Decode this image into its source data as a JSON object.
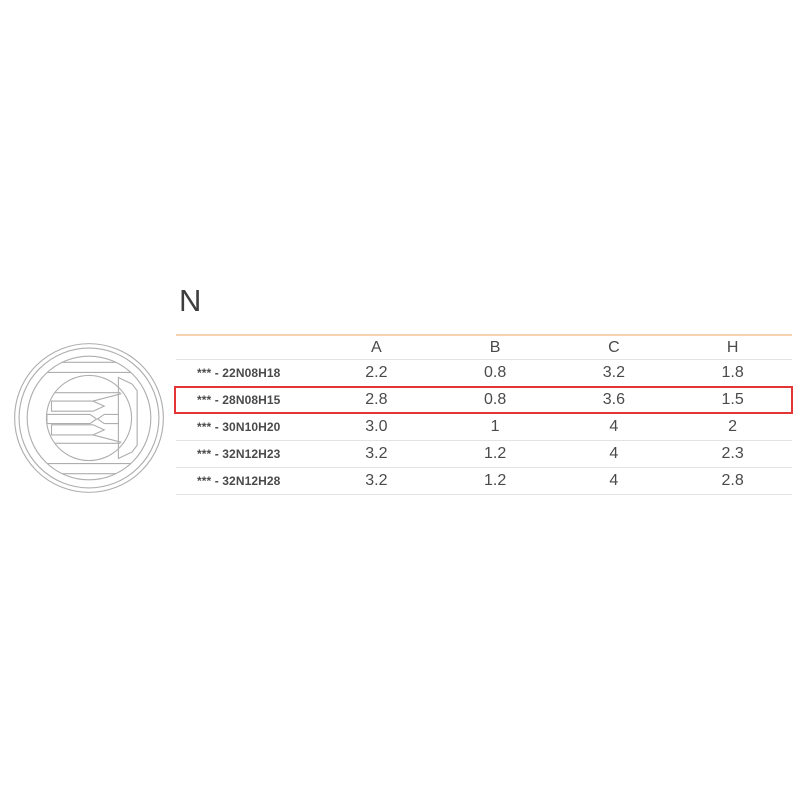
{
  "section": {
    "title": "N"
  },
  "diagram": {
    "description": "circular connector face technical line drawing"
  },
  "table": {
    "columns": [
      "A",
      "B",
      "C",
      "H"
    ],
    "rows": [
      {
        "label": "*** - 22N08H18",
        "values": [
          "2.2",
          "0.8",
          "3.2",
          "1.8"
        ],
        "highlighted": false
      },
      {
        "label": "*** - 28N08H15",
        "values": [
          "2.8",
          "0.8",
          "3.6",
          "1.5"
        ],
        "highlighted": true
      },
      {
        "label": "*** - 30N10H20",
        "values": [
          "3.0",
          "1",
          "4",
          "2"
        ],
        "highlighted": false
      },
      {
        "label": "*** - 32N12H23",
        "values": [
          "3.2",
          "1.2",
          "4",
          "2.3"
        ],
        "highlighted": false
      },
      {
        "label": "*** - 32N12H28",
        "values": [
          "3.2",
          "1.2",
          "4",
          "2.8"
        ],
        "highlighted": false
      }
    ]
  },
  "colors": {
    "accent_line": "#f6d3ae",
    "highlight_border": "#e23535",
    "row_divider": "#e3e3e3",
    "drawing_stroke": "#aeaeae",
    "text_primary": "#3d3d3d",
    "text_table": "#4a4a4a"
  }
}
